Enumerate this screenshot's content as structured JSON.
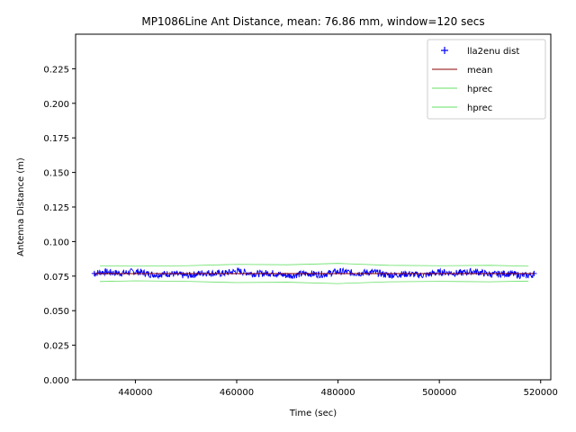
{
  "chart_data": {
    "type": "line",
    "title": "MP1086Line Ant Distance, mean: 76.86 mm, window=120 secs",
    "xlabel": "Time (sec)",
    "ylabel": "Antenna Distance (m)",
    "xlim": [
      428200,
      522000
    ],
    "ylim": [
      0.0,
      0.25
    ],
    "x_ticks": [
      440000,
      460000,
      480000,
      500000,
      520000
    ],
    "x_tick_labels": [
      "440000",
      "460000",
      "480000",
      "500000",
      "520000"
    ],
    "y_ticks": [
      0.0,
      0.025,
      0.05,
      0.075,
      0.1,
      0.125,
      0.15,
      0.175,
      0.2,
      0.225
    ],
    "y_tick_labels": [
      "0.000",
      "0.025",
      "0.050",
      "0.075",
      "0.100",
      "0.125",
      "0.150",
      "0.175",
      "0.200",
      "0.225"
    ],
    "grid": false,
    "legend_position": "top-right",
    "series": [
      {
        "name": "lla2enu dist",
        "style": "marker",
        "color": "#0000ff",
        "x_range": [
          431900,
          518700
        ],
        "center": 0.0769,
        "amplitude": 0.0025
      },
      {
        "name": "mean",
        "style": "line",
        "color": "#8b0000",
        "x": [
          431900,
          518700
        ],
        "y": [
          0.07686,
          0.07686
        ]
      },
      {
        "name": "hprec",
        "style": "line",
        "color": "#66e066",
        "x": [
          433000,
          440000,
          450000,
          460000,
          470000,
          480000,
          490000,
          500000,
          510000,
          517600
        ],
        "y": [
          0.0825,
          0.0822,
          0.0825,
          0.0835,
          0.0832,
          0.0842,
          0.0828,
          0.0825,
          0.0828,
          0.0822
        ]
      },
      {
        "name": "hprec",
        "style": "line",
        "color": "#66e066",
        "x": [
          433000,
          440000,
          450000,
          460000,
          470000,
          480000,
          490000,
          500000,
          510000,
          517600
        ],
        "y": [
          0.0711,
          0.0716,
          0.0712,
          0.0703,
          0.0706,
          0.0696,
          0.0709,
          0.0712,
          0.0709,
          0.0714
        ]
      }
    ]
  }
}
